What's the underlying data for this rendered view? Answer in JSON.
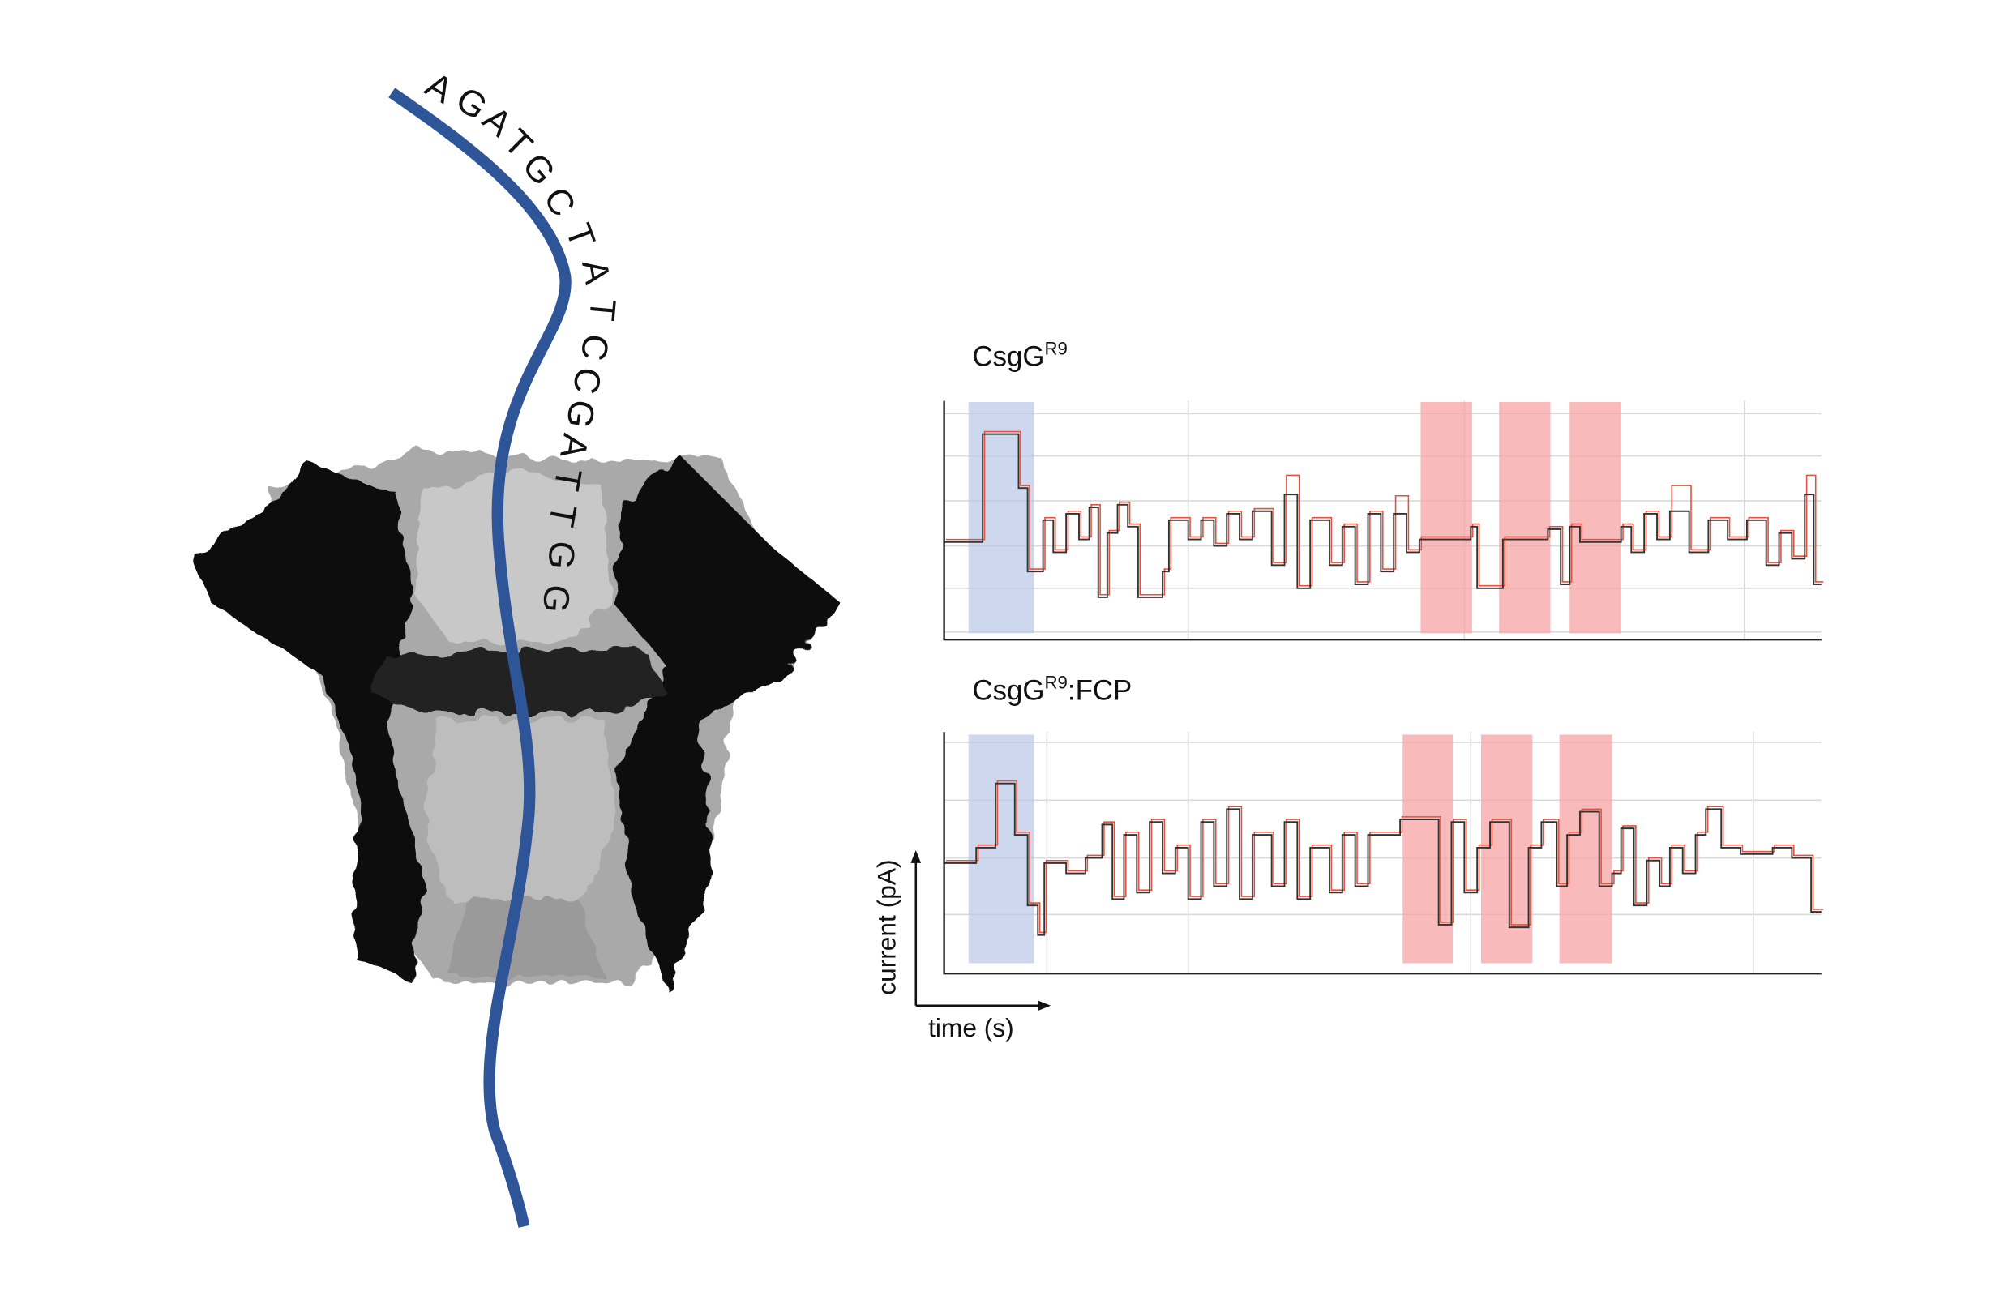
{
  "sequence": {
    "letters": [
      "A",
      "G",
      "A",
      "T",
      "G",
      "C",
      "T",
      "A",
      "T",
      "C",
      "C",
      "G",
      "A",
      "T",
      "T",
      "G",
      "G"
    ]
  },
  "panels": [
    {
      "title": "CsgG",
      "superscript": "R9"
    },
    {
      "title": "CsgG",
      "superscript": "R9",
      "suffix": ":FCP"
    }
  ],
  "axes": {
    "y_label": "current (pA)",
    "x_label": "time (s)"
  }
}
